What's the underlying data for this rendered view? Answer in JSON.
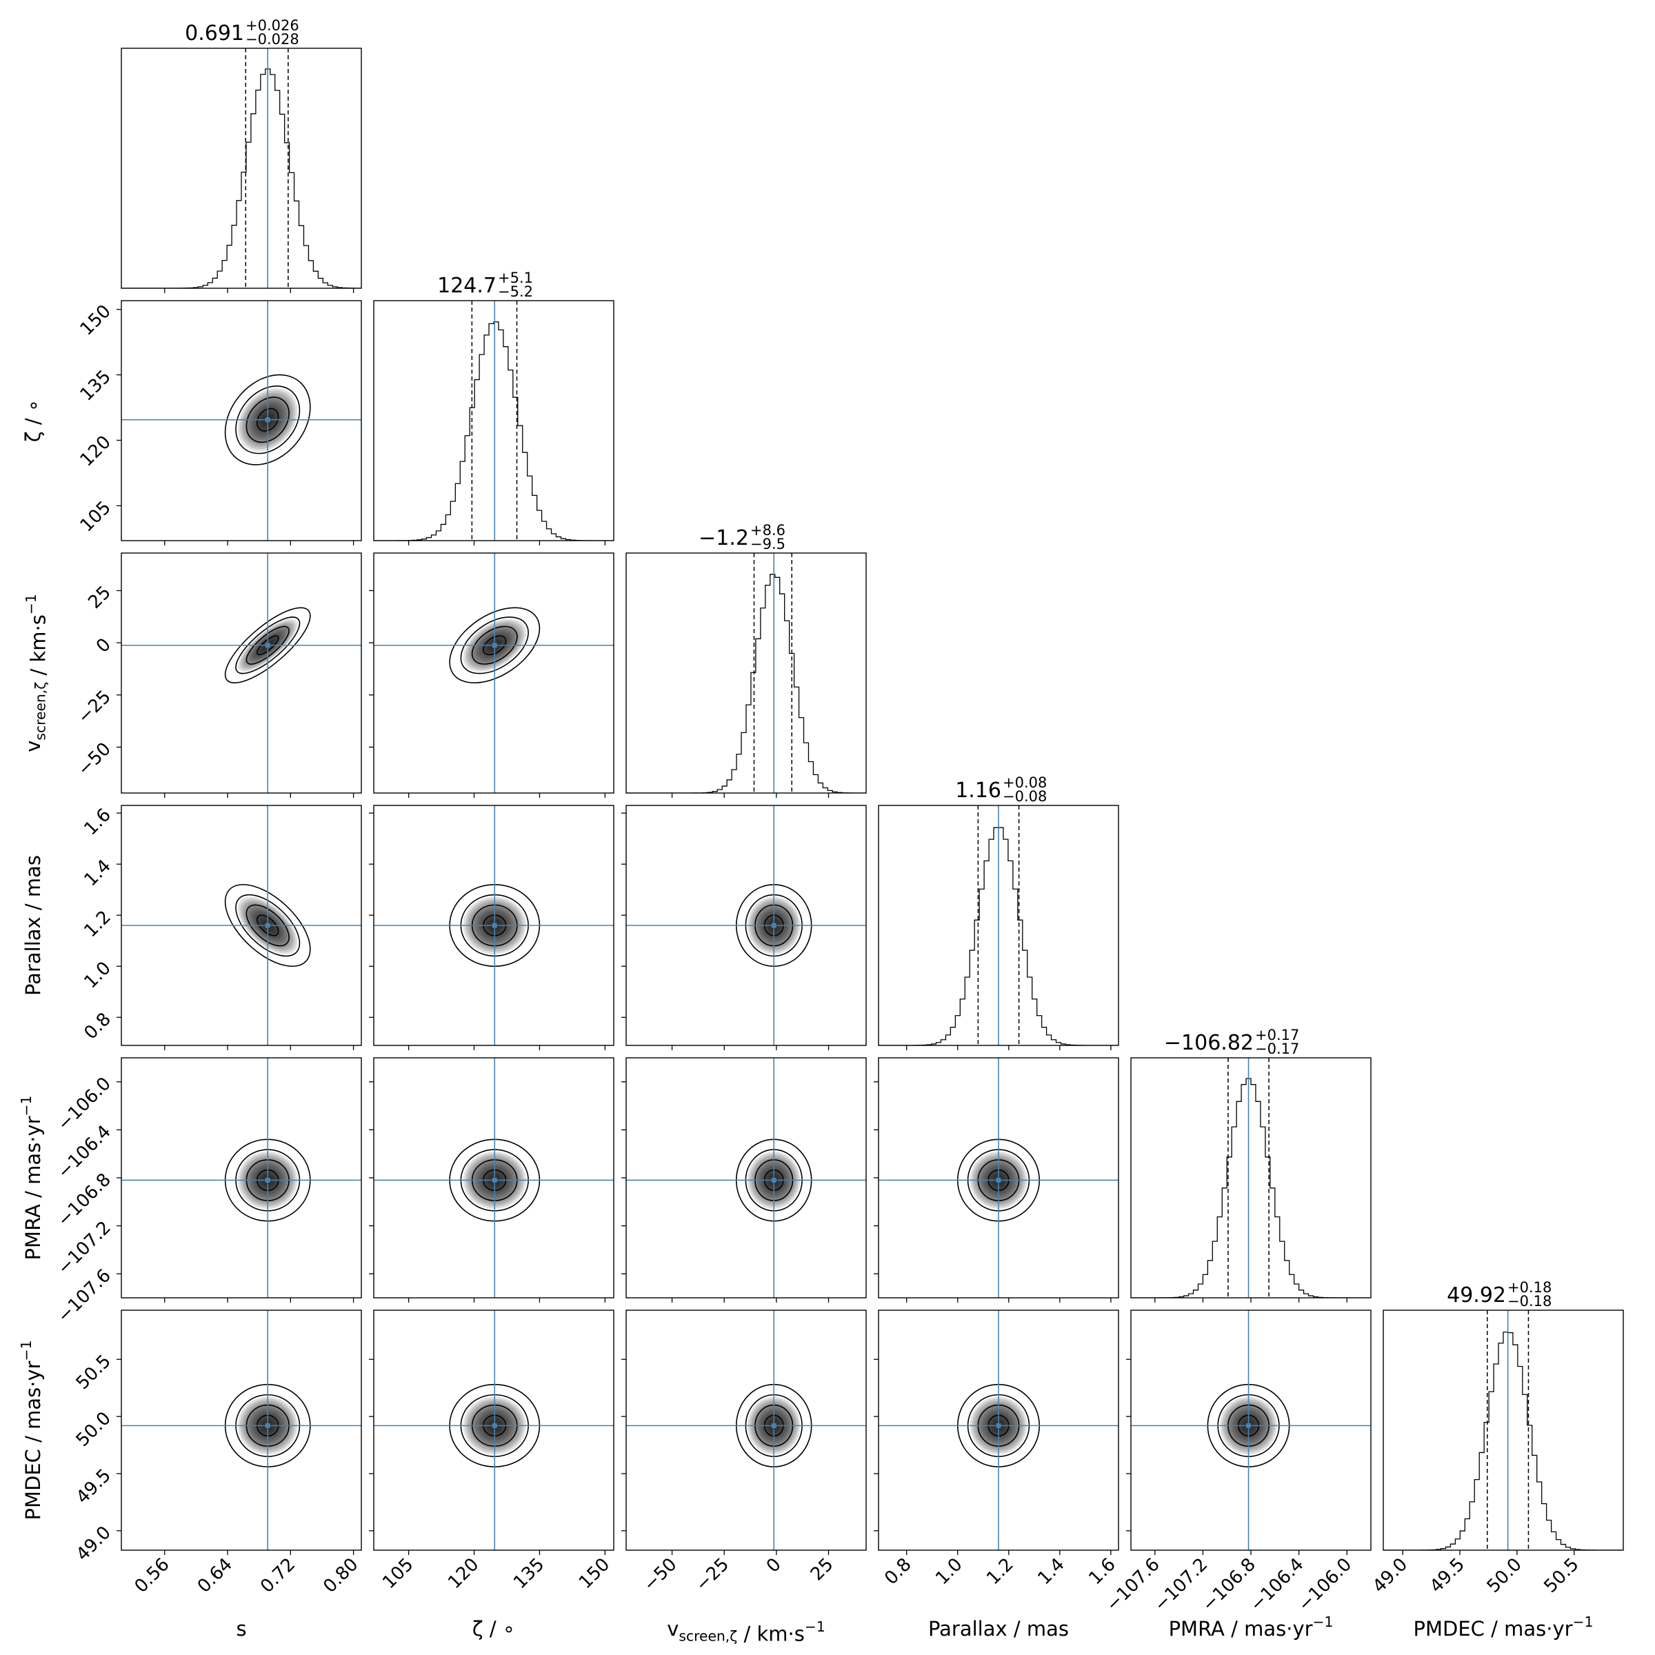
{
  "chart_data": {
    "type": "corner",
    "title": "",
    "colors": {
      "truth": "#4682b4",
      "frame": "#000000",
      "density": "#000000"
    },
    "params": [
      {
        "key": "s",
        "label": "s",
        "sub": "",
        "unit": "",
        "range": [
          0.505,
          0.81
        ],
        "ticks": [
          0.56,
          0.64,
          0.72,
          0.8
        ],
        "tick_labels": [
          "0.56",
          "0.64",
          "0.72",
          "0.80"
        ],
        "median": 0.691,
        "plus": "0.026",
        "minus": "0.028",
        "median_label": "0.691",
        "sigma": 0.027,
        "show_row_label": false
      },
      {
        "key": "zeta",
        "label": "ζ",
        "sub": "",
        "unit": "∘",
        "range": [
          97.0,
          152.0
        ],
        "ticks": [
          105,
          120,
          135,
          150
        ],
        "tick_labels": [
          "105",
          "120",
          "135",
          "150"
        ],
        "median": 124.7,
        "plus": "5.1",
        "minus": "5.2",
        "median_label": "124.7",
        "sigma": 5.15,
        "show_row_label": true
      },
      {
        "key": "v_screen",
        "label": "v",
        "sub": "screen,ζ",
        "unit": "km·s",
        "range": [
          -72.0,
          43.0
        ],
        "ticks": [
          -50,
          -25,
          0,
          25
        ],
        "tick_labels": [
          "−50",
          "−25",
          "0",
          "25"
        ],
        "median": -1.2,
        "plus": "8.6",
        "minus": "9.5",
        "median_label": "−1.2",
        "sigma": 9.0,
        "show_row_label": true
      },
      {
        "key": "parallax",
        "label": "Parallax",
        "sub": "",
        "unit": "mas",
        "range": [
          0.69,
          1.63
        ],
        "ticks": [
          0.8,
          1.0,
          1.2,
          1.4,
          1.6
        ],
        "tick_labels": [
          "0.8",
          "1.0",
          "1.2",
          "1.4",
          "1.6"
        ],
        "median": 1.16,
        "plus": "0.08",
        "minus": "0.08",
        "median_label": "1.16",
        "sigma": 0.08,
        "show_row_label": true
      },
      {
        "key": "pmra",
        "label": "PMRA",
        "sub": "",
        "unit": "mas·yr",
        "range": [
          -107.8,
          -105.8
        ],
        "ticks": [
          -107.6,
          -107.2,
          -106.8,
          -106.4,
          -106.0
        ],
        "tick_labels": [
          "−107.6",
          "−107.2",
          "−106.8",
          "−106.4",
          "−106.0"
        ],
        "median": -106.82,
        "plus": "0.17",
        "minus": "0.17",
        "median_label": "−106.82",
        "sigma": 0.17,
        "show_row_label": true
      },
      {
        "key": "pmdec",
        "label": "PMDEC",
        "sub": "",
        "unit": "mas·yr",
        "range": [
          48.83,
          50.93
        ],
        "ticks": [
          49.0,
          49.5,
          50.0,
          50.5
        ],
        "tick_labels": [
          "49.0",
          "49.5",
          "50.0",
          "50.5"
        ],
        "median": 49.92,
        "plus": "0.18",
        "minus": "0.18",
        "median_label": "49.92",
        "sigma": 0.18,
        "show_row_label": true
      }
    ],
    "correlations": [
      [
        1.0,
        0.28,
        0.78,
        -0.58,
        0.0,
        0.0
      ],
      [
        0.28,
        1.0,
        0.45,
        0.0,
        0.0,
        0.0
      ],
      [
        0.78,
        0.45,
        1.0,
        0.0,
        0.0,
        0.0
      ],
      [
        -0.58,
        0.0,
        0.0,
        1.0,
        0.0,
        0.0
      ],
      [
        0.0,
        0.0,
        0.0,
        0.0,
        1.0,
        0.0
      ],
      [
        0.0,
        0.0,
        0.0,
        0.0,
        0.0,
        1.0
      ]
    ],
    "contour_levels_sigma": [
      0.5,
      1.0,
      1.5,
      2.0
    ],
    "quantile_markers": "median ± 1σ (dashed)",
    "histogram_bins": 50
  }
}
